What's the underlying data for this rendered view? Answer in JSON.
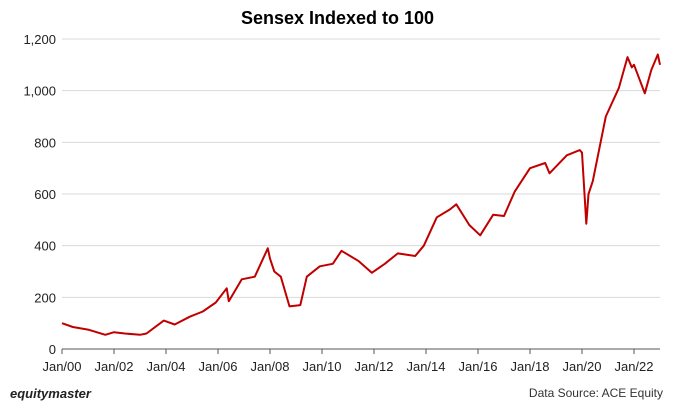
{
  "chart_data": {
    "type": "line",
    "title": "Sensex Indexed to 100",
    "xlabel": "",
    "ylabel": "",
    "ylim": [
      0,
      1200
    ],
    "yticks": [
      0,
      200,
      400,
      600,
      800,
      1000,
      1200
    ],
    "ytick_labels": [
      "0",
      "200",
      "400",
      "600",
      "800",
      "1,000",
      "1,200"
    ],
    "xlim": [
      "2000-01",
      "2023-01"
    ],
    "xtick_labels": [
      "Jan/00",
      "Jan/02",
      "Jan/04",
      "Jan/06",
      "Jan/08",
      "Jan/10",
      "Jan/12",
      "Jan/14",
      "Jan/16",
      "Jan/18",
      "Jan/20",
      "Jan/22"
    ],
    "grid": "horizontal",
    "legend": "none",
    "line_color": "#c00000",
    "series": [
      {
        "x": [
          "2000-01",
          "2000-06",
          "2001-01",
          "2001-09",
          "2002-01",
          "2002-06",
          "2003-01",
          "2003-04",
          "2003-12",
          "2004-05",
          "2004-12",
          "2005-06",
          "2005-12",
          "2006-05",
          "2006-06",
          "2006-12",
          "2007-06",
          "2007-12",
          "2008-01",
          "2008-03",
          "2008-06",
          "2008-10",
          "2009-03",
          "2009-06",
          "2009-12",
          "2010-06",
          "2010-10",
          "2011-06",
          "2011-12",
          "2012-06",
          "2012-12",
          "2013-08",
          "2013-12",
          "2014-06",
          "2014-12",
          "2015-03",
          "2015-09",
          "2016-02",
          "2016-08",
          "2017-01",
          "2017-06",
          "2018-01",
          "2018-08",
          "2018-10",
          "2019-06",
          "2019-12",
          "2020-01",
          "2020-03",
          "2020-04",
          "2020-06",
          "2020-12",
          "2021-06",
          "2021-10",
          "2021-12",
          "2022-01",
          "2022-06",
          "2022-09",
          "2022-12",
          "2023-01"
        ],
        "y": [
          100,
          85,
          75,
          55,
          65,
          60,
          55,
          60,
          110,
          95,
          125,
          145,
          180,
          235,
          185,
          270,
          280,
          390,
          350,
          300,
          280,
          165,
          170,
          280,
          320,
          330,
          380,
          340,
          295,
          330,
          370,
          360,
          400,
          510,
          540,
          560,
          480,
          440,
          520,
          515,
          610,
          700,
          720,
          680,
          750,
          770,
          760,
          485,
          600,
          650,
          900,
          1010,
          1130,
          1090,
          1100,
          990,
          1080,
          1140,
          1100
        ]
      }
    ]
  },
  "footer": {
    "brand": "equitymaster",
    "source": "Data Source: ACE Equity"
  }
}
